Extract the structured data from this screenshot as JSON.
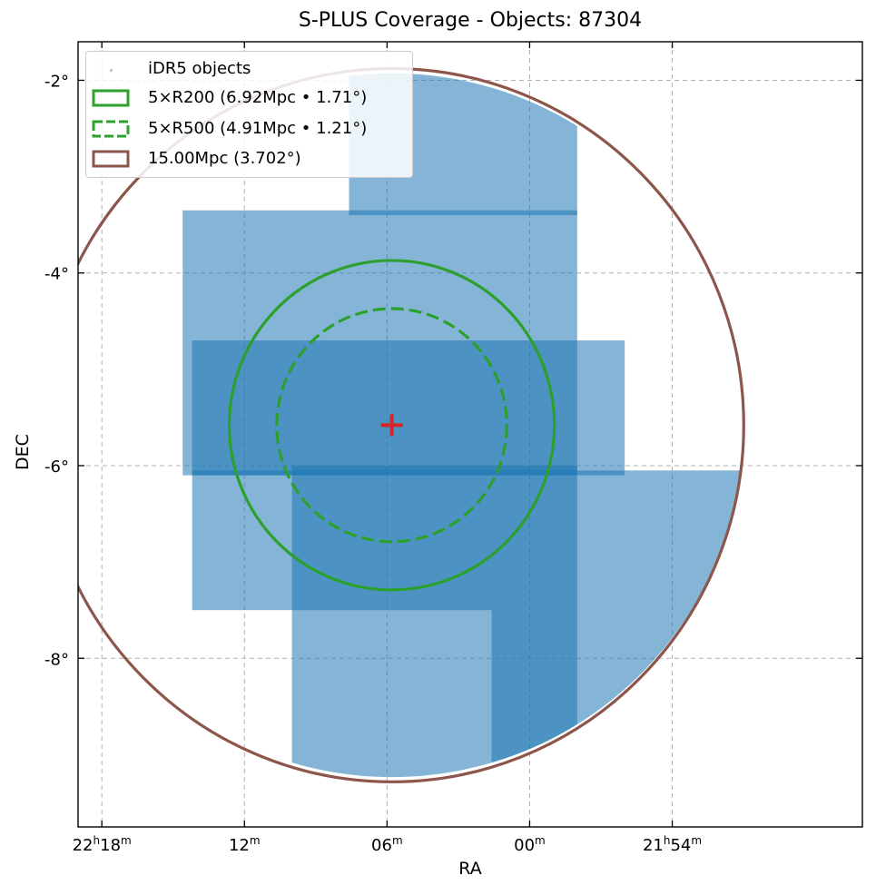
{
  "chart_data": {
    "type": "scatter",
    "title": "S-PLUS Coverage - Objects: 87304",
    "xlabel": "RA",
    "ylabel": "DEC",
    "x_unit": "RA (hours, sexagesimal)",
    "xlim_deg": [
      334.75,
      326.5
    ],
    "ylim_deg": [
      -9.75,
      -1.6
    ],
    "x_ticks": [
      {
        "deg": 334.5,
        "label_h": "22",
        "label_m": "18"
      },
      {
        "deg": 333.0,
        "label_h": "",
        "label_m": "12"
      },
      {
        "deg": 331.5,
        "label_h": "",
        "label_m": "06"
      },
      {
        "deg": 330.0,
        "label_h": "",
        "label_m": "00"
      },
      {
        "deg": 328.5,
        "label_h": "21",
        "label_m": "54"
      }
    ],
    "y_ticks": [
      {
        "deg": -2,
        "label": "-2°"
      },
      {
        "deg": -4,
        "label": "-4°"
      },
      {
        "deg": -6,
        "label": "-6°"
      },
      {
        "deg": -8,
        "label": "-8°"
      }
    ],
    "grid": true,
    "legend_position": "top-left",
    "center": {
      "ra": 331.45,
      "dec": -5.58,
      "color": "#d62728"
    },
    "series": [
      {
        "name": "iDR5 objects",
        "kind": "scatter",
        "color": "#1f77b4",
        "count": 87304,
        "footprint_rects_deg": [
          {
            "ra": [
              331.9,
              329.5
            ],
            "dec": [
              -3.4,
              -1.9
            ]
          },
          {
            "ra": [
              333.65,
              329.5
            ],
            "dec": [
              -6.1,
              -3.35
            ]
          },
          {
            "ra": [
              333.55,
              329.0
            ],
            "dec": [
              -6.1,
              -4.7
            ]
          },
          {
            "ra": [
              333.55,
              330.4
            ],
            "dec": [
              -7.5,
              -6.05
            ]
          },
          {
            "ra": [
              332.5,
              329.5
            ],
            "dec": [
              -9.3,
              -6.0
            ]
          },
          {
            "ra": [
              330.4,
              327.3
            ],
            "dec": [
              -9.3,
              -6.05
            ]
          }
        ]
      },
      {
        "name": "5×R200 (6.92Mpc • 1.71°)",
        "kind": "circle",
        "radius_deg": 1.71,
        "color": "#2ca02c",
        "dashed": false
      },
      {
        "name": "5×R500 (4.91Mpc • 1.21°)",
        "kind": "circle",
        "radius_deg": 1.21,
        "color": "#2ca02c",
        "dashed": true
      },
      {
        "name": "15.00Mpc (3.702°)",
        "kind": "circle",
        "radius_deg": 3.702,
        "color": "#8c564b",
        "dashed": false
      }
    ]
  }
}
